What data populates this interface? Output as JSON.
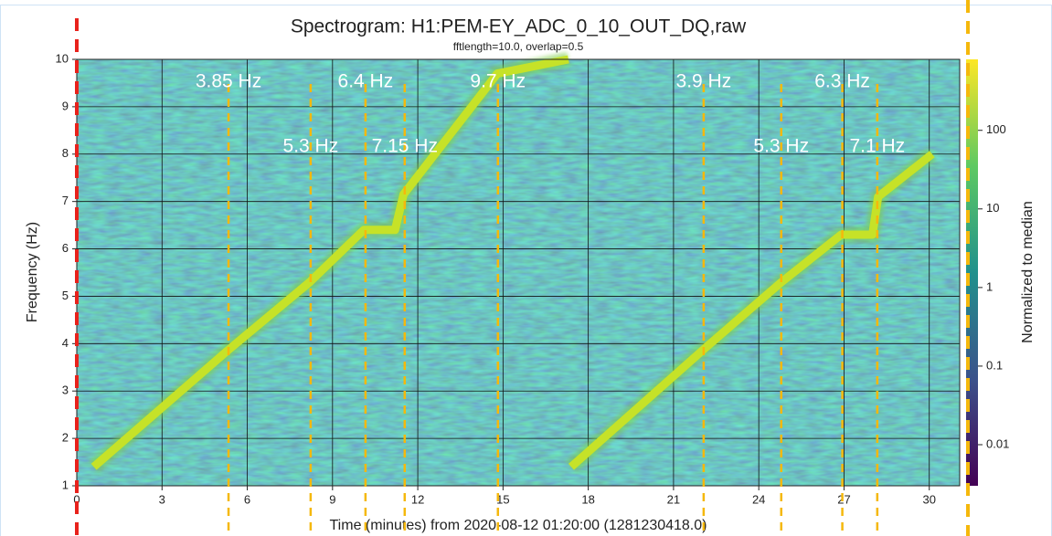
{
  "chart_data": {
    "type": "spectrogram",
    "title": "Spectrogram: H1:PEM-EY_ADC_0_10_OUT_DQ,raw",
    "subtitle": "fftlength=10.0, overlap=0.5",
    "xlabel": "Time (minutes) from 2020-08-12 01:20:00 (1281230418.0)",
    "ylabel": "Frequency (Hz)",
    "xlim": [
      0,
      31.07
    ],
    "ylim": [
      1,
      10
    ],
    "xticks": [
      0,
      3,
      6,
      9,
      12,
      15,
      18,
      21,
      24,
      27,
      30
    ],
    "yticks": [
      1,
      2,
      3,
      4,
      5,
      6,
      7,
      8,
      9,
      10
    ],
    "grid": true,
    "series": [
      {
        "color": "#c6e228",
        "x": [
          0.6,
          5.3,
          8.2,
          10.1,
          11.2,
          11.5,
          14.8,
          17.3
        ],
        "values": [
          1.4,
          3.85,
          5.3,
          6.4,
          6.4,
          7.15,
          9.7,
          10
        ]
      },
      {
        "color": "#c6e228",
        "x": [
          17.4,
          22.1,
          24.8,
          26.9,
          28.0,
          28.2,
          30.1
        ],
        "values": [
          1.4,
          3.9,
          5.3,
          6.3,
          6.3,
          7.1,
          8.0
        ]
      }
    ],
    "annotations": [
      {
        "x": 5.34,
        "label": "3.85 Hz"
      },
      {
        "x": 8.23,
        "label": "5.3 Hz"
      },
      {
        "x": 10.16,
        "label": "6.4 Hz"
      },
      {
        "x": 11.54,
        "label": "7.15 Hz"
      },
      {
        "x": 14.82,
        "label": "9.7 Hz"
      },
      {
        "x": 22.06,
        "label": "3.9 Hz"
      },
      {
        "x": 24.79,
        "label": "5.3 Hz"
      },
      {
        "x": 26.94,
        "label": "6.3 Hz"
      },
      {
        "x": 28.17,
        "label": "7.1 Hz"
      }
    ],
    "colorbar": {
      "label": "Normalized to median",
      "log": true,
      "clim": [
        0.003,
        800
      ],
      "cticks": [
        0.01,
        0.1,
        1,
        10,
        100
      ]
    }
  }
}
